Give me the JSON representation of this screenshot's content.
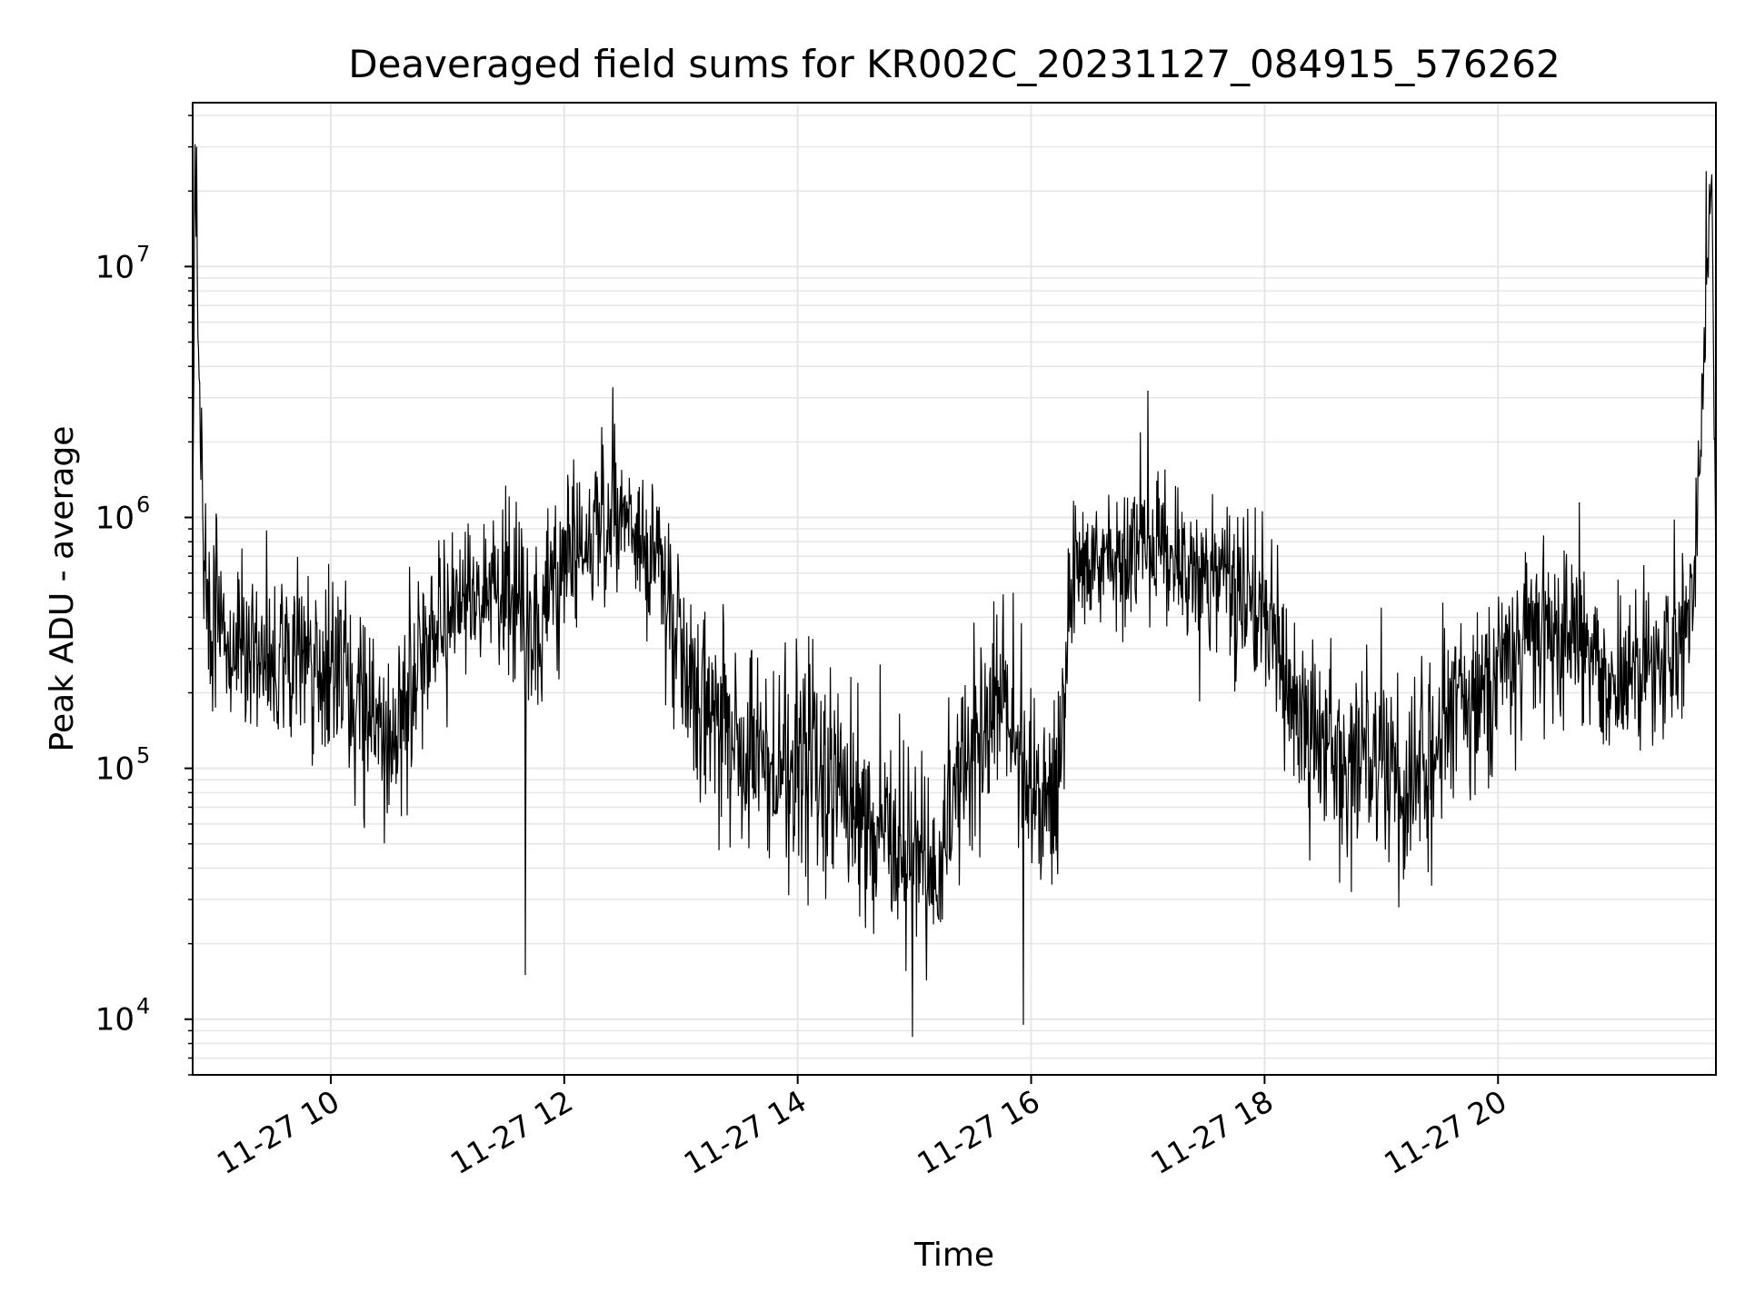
{
  "chart_data": {
    "type": "line",
    "title": "Deaveraged field sums for KR002C_20231127_084915_576262",
    "xlabel": "Time",
    "ylabel": "Peak ADU - average",
    "x_scale": "time",
    "y_scale": "log",
    "xlim": [
      "2023-11-27 08:49",
      "2023-11-27 21:52"
    ],
    "ylim": [
      6000,
      45000000
    ],
    "x_ticks": [
      {
        "value": "2023-11-27 10:00",
        "label": "11-27 10"
      },
      {
        "value": "2023-11-27 12:00",
        "label": "11-27 12"
      },
      {
        "value": "2023-11-27 14:00",
        "label": "11-27 14"
      },
      {
        "value": "2023-11-27 16:00",
        "label": "11-27 16"
      },
      {
        "value": "2023-11-27 18:00",
        "label": "11-27 18"
      },
      {
        "value": "2023-11-27 20:00",
        "label": "11-27 20"
      }
    ],
    "y_ticks": [
      {
        "value": 10000,
        "base": "10",
        "exp": "4"
      },
      {
        "value": 100000,
        "base": "10",
        "exp": "5"
      },
      {
        "value": 1000000,
        "base": "10",
        "exp": "6"
      },
      {
        "value": 10000000,
        "base": "10",
        "exp": "7"
      }
    ],
    "grid": true,
    "line_color": "#000000",
    "grid_color": "#e6e6e6",
    "series": [
      {
        "x": [
          "2023-11-27 08:49",
          "2023-11-27 08:50",
          "2023-11-27 08:55",
          "2023-11-27 09:05",
          "2023-11-27 09:20",
          "2023-11-27 09:40",
          "2023-11-27 10:00",
          "2023-11-27 10:20",
          "2023-11-27 10:30",
          "2023-11-27 10:50",
          "2023-11-27 11:10",
          "2023-11-27 11:30",
          "2023-11-27 11:45",
          "2023-11-27 12:00",
          "2023-11-27 12:15",
          "2023-11-27 12:30",
          "2023-11-27 12:45",
          "2023-11-27 13:00",
          "2023-11-27 13:15",
          "2023-11-27 13:30",
          "2023-11-27 13:45",
          "2023-11-27 14:00",
          "2023-11-27 14:15",
          "2023-11-27 14:30",
          "2023-11-27 14:45",
          "2023-11-27 15:00",
          "2023-11-27 15:15",
          "2023-11-27 15:30",
          "2023-11-27 15:45",
          "2023-11-27 16:00",
          "2023-11-27 16:15",
          "2023-11-27 16:20",
          "2023-11-27 16:40",
          "2023-11-27 17:00",
          "2023-11-27 17:20",
          "2023-11-27 17:40",
          "2023-11-27 18:00",
          "2023-11-27 18:20",
          "2023-11-27 18:40",
          "2023-11-27 19:00",
          "2023-11-27 19:20",
          "2023-11-27 19:40",
          "2023-11-27 20:00",
          "2023-11-27 20:20",
          "2023-11-27 20:40",
          "2023-11-27 21:00",
          "2023-11-27 21:20",
          "2023-11-27 21:40",
          "2023-11-27 21:50",
          "2023-11-27 21:52"
        ],
        "y": [
          600000,
          30000000,
          500000,
          350000,
          300000,
          280000,
          250000,
          200000,
          120000,
          350000,
          450000,
          550000,
          350000,
          650000,
          900000,
          1000000,
          750000,
          250000,
          150000,
          120000,
          110000,
          100000,
          85000,
          70000,
          60000,
          40000,
          50000,
          120000,
          200000,
          80000,
          100000,
          600000,
          700000,
          700000,
          650000,
          550000,
          450000,
          150000,
          110000,
          100000,
          90000,
          180000,
          250000,
          350000,
          350000,
          220000,
          250000,
          400000,
          24000000,
          500000
        ],
        "noise_spread_decades": [
          0.45,
          0.2,
          0.45,
          0.5,
          0.5,
          0.5,
          0.55,
          0.55,
          0.6,
          0.5,
          0.45,
          0.5,
          0.55,
          0.5,
          0.45,
          0.4,
          0.45,
          0.55,
          0.6,
          0.6,
          0.65,
          0.65,
          0.65,
          0.65,
          0.65,
          0.6,
          0.6,
          0.55,
          0.55,
          0.6,
          0.6,
          0.4,
          0.45,
          0.45,
          0.45,
          0.45,
          0.5,
          0.55,
          0.6,
          0.6,
          0.6,
          0.55,
          0.55,
          0.5,
          0.5,
          0.5,
          0.5,
          0.45,
          0.2,
          0.4
        ]
      }
    ],
    "spikes": [
      {
        "x": "2023-11-27 08:51",
        "y": 30000000
      },
      {
        "x": "2023-11-27 21:47",
        "y": 24000000
      },
      {
        "x": "2023-11-27 11:40",
        "y": 15000
      },
      {
        "x": "2023-11-27 14:59",
        "y": 8500
      },
      {
        "x": "2023-11-27 15:56",
        "y": 9500
      },
      {
        "x": "2023-11-27 12:25",
        "y": 3300000
      },
      {
        "x": "2023-11-27 17:00",
        "y": 3200000
      }
    ]
  }
}
